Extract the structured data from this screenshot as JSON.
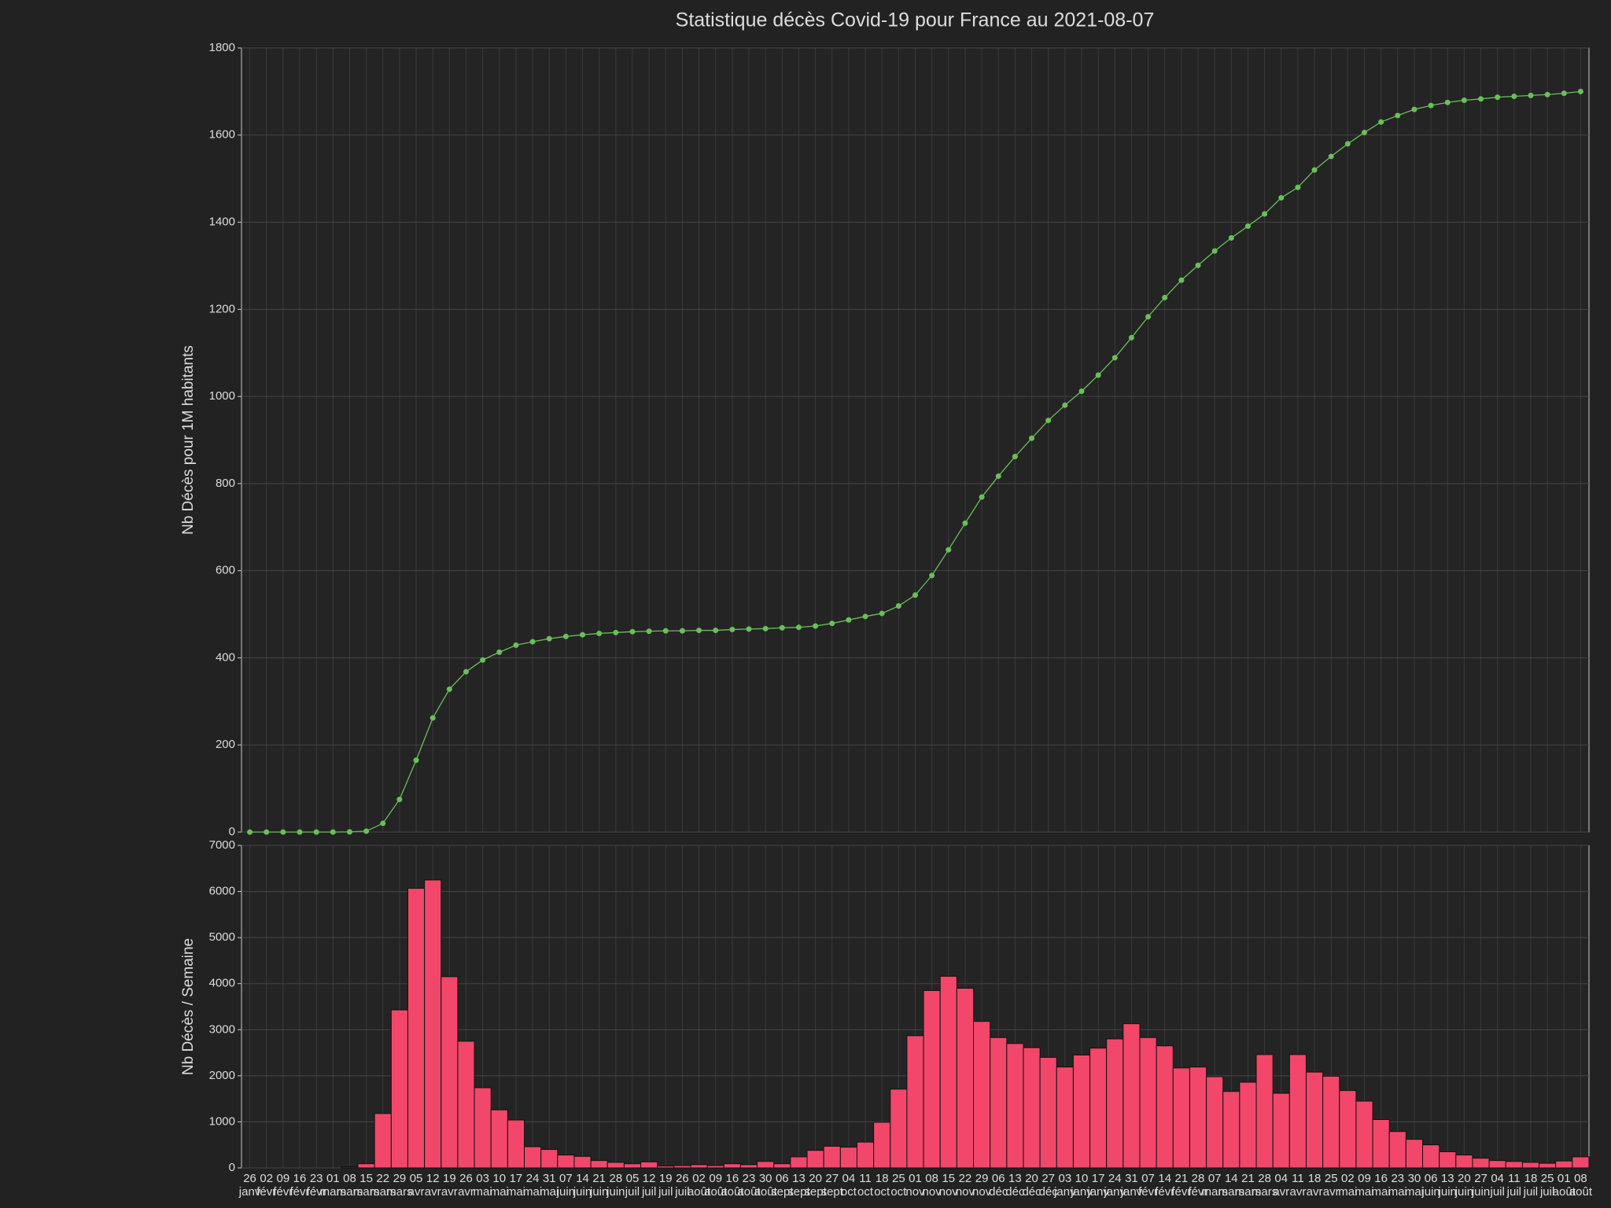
{
  "chart_data": [
    {
      "type": "line",
      "title": "Statistique décès Covid-19 pour France au 2021-08-07",
      "ylabel": "Nb Décès pour 1M habitants",
      "series": [
        {
          "color": "#6abf5a",
          "values": [
            0,
            0,
            0,
            0,
            0,
            0,
            0.5,
            2,
            20,
            75,
            165,
            262,
            328,
            368,
            395,
            413,
            429,
            437,
            444,
            449,
            453,
            456,
            458,
            460,
            461,
            462,
            462,
            463,
            463,
            465,
            466,
            467,
            469,
            470,
            473,
            479,
            487,
            495,
            502,
            519,
            544,
            589,
            648,
            709,
            769,
            817,
            862,
            904,
            945,
            980,
            1012,
            1049,
            1089,
            1135,
            1183,
            1227,
            1267,
            1301,
            1334,
            1364,
            1391,
            1419,
            1456,
            1480,
            1520,
            1551,
            1580,
            1606,
            1630,
            1645,
            1659,
            1668,
            1675,
            1680,
            1683,
            1687,
            1689,
            1691,
            1693,
            1696,
            1700
          ]
        }
      ],
      "ylim": [
        0,
        1800
      ],
      "yticks": [
        0,
        200,
        400,
        600,
        800,
        1000,
        1200,
        1400,
        1600,
        1800
      ],
      "grid": true
    },
    {
      "type": "bar",
      "ylabel": "Nb Décès / Semaine",
      "categories": [
        "26",
        "02",
        "09",
        "16",
        "23",
        "01",
        "08",
        "15",
        "22",
        "29",
        "05",
        "12",
        "19",
        "26",
        "03",
        "10",
        "17",
        "24",
        "31",
        "07",
        "14",
        "21",
        "28",
        "05",
        "12",
        "19",
        "26",
        "02",
        "09",
        "16",
        "23",
        "30",
        "06",
        "13",
        "20",
        "27",
        "04",
        "11",
        "18",
        "25",
        "01",
        "08",
        "15",
        "22",
        "29",
        "06",
        "13",
        "20",
        "27",
        "03",
        "10",
        "17",
        "24",
        "31",
        "07",
        "14",
        "21",
        "28",
        "07",
        "14",
        "21",
        "28",
        "04",
        "11",
        "18",
        "25",
        "02",
        "09",
        "16",
        "23",
        "30",
        "06",
        "13",
        "20",
        "27",
        "04",
        "11",
        "18",
        "25",
        "01",
        "08"
      ],
      "category_months": [
        "janv",
        "févr",
        "févr",
        "févr",
        "févr",
        "mars",
        "mars",
        "mars",
        "mars",
        "mars",
        "avr",
        "avr",
        "avr",
        "avr",
        "mai",
        "mai",
        "mai",
        "mai",
        "mai",
        "juin",
        "juin",
        "juin",
        "juin",
        "juil",
        "juil",
        "juil",
        "juil",
        "août",
        "août",
        "août",
        "août",
        "août",
        "sept",
        "sept",
        "sept",
        "sept",
        "oct",
        "oct",
        "oct",
        "oct",
        "nov",
        "nov",
        "nov",
        "nov",
        "nov",
        "déc",
        "déc",
        "déc",
        "déc",
        "janv",
        "janv",
        "janv",
        "janv",
        "janv",
        "févr",
        "févr",
        "févr",
        "févr",
        "mars",
        "mars",
        "mars",
        "mars",
        "avr",
        "avr",
        "avr",
        "avr",
        "mai",
        "mai",
        "mai",
        "mai",
        "mai",
        "juin",
        "juin",
        "juin",
        "juin",
        "juil",
        "juil",
        "juil",
        "juil",
        "août",
        "août"
      ],
      "series": [
        {
          "color": "#f2476a",
          "values": [
            0,
            0,
            0,
            0,
            0,
            0,
            20,
            90,
            1180,
            3430,
            6070,
            6250,
            4150,
            2750,
            1740,
            1260,
            1040,
            460,
            400,
            280,
            250,
            160,
            120,
            90,
            130,
            40,
            50,
            70,
            50,
            90,
            70,
            140,
            90,
            240,
            380,
            470,
            450,
            560,
            990,
            1710,
            2870,
            3850,
            4160,
            3900,
            3180,
            2830,
            2700,
            2610,
            2400,
            2190,
            2450,
            2600,
            2800,
            3130,
            2830,
            2650,
            2170,
            2190,
            1980,
            1660,
            1860,
            2460,
            1620,
            2460,
            2080,
            1990,
            1680,
            1450,
            1050,
            790,
            620,
            500,
            350,
            280,
            210,
            160,
            140,
            120,
            100,
            150,
            240
          ]
        }
      ],
      "ylim": [
        0,
        7000
      ],
      "yticks": [
        0,
        1000,
        2000,
        3000,
        4000,
        5000,
        6000,
        7000
      ],
      "grid": true
    }
  ]
}
